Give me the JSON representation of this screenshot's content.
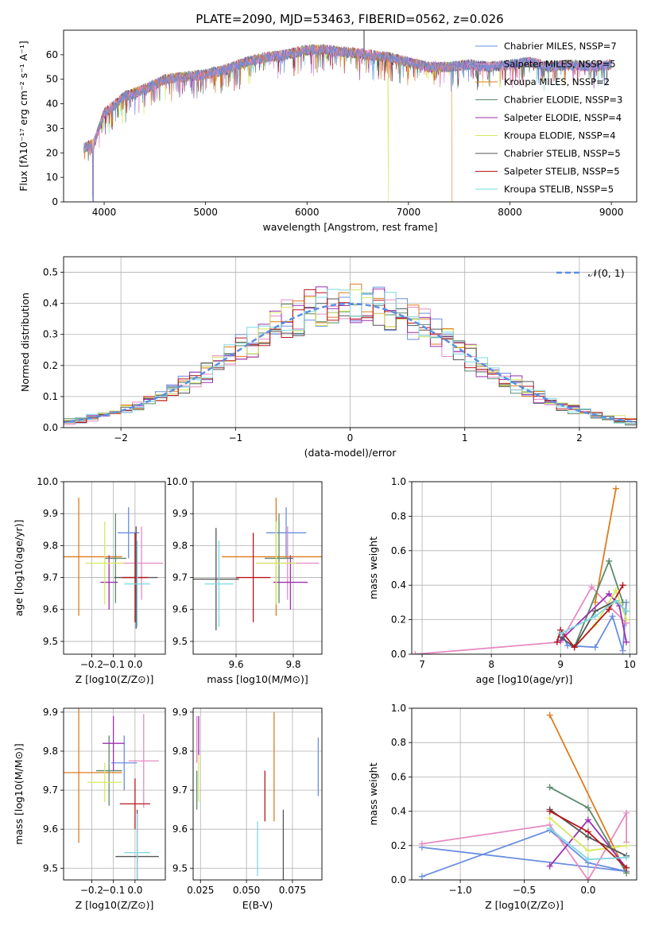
{
  "figure_title": "PLATE=2090, MJD=53463, FIBERID=0562, z=0.026",
  "colors": [
    "#6a8ee0",
    "#e78ac3",
    "#e07b1e",
    "#5b8a6b",
    "#9b30b0",
    "#d8e860",
    "#555555",
    "#b5171c",
    "#7dd8e0"
  ],
  "chart_data": [
    {
      "type": "line",
      "title": "PLATE=2090, MJD=53463, FIBERID=0562, z=0.026",
      "xlabel": "wavelength [Angstrom, rest frame]",
      "ylabel": "Flux [fλ10⁻¹⁷ erg cm⁻² s⁻¹ A⁻¹]",
      "xlim": [
        3600,
        9250
      ],
      "ylim": [
        0,
        70
      ],
      "xticks": [
        4000,
        5000,
        6000,
        7000,
        8000,
        9000
      ],
      "yticks": [
        0,
        10,
        20,
        30,
        40,
        50,
        60
      ],
      "grid": false,
      "legend": "top-right",
      "legend_entries": [
        "Chabrier MILES, NSSP=7",
        "Salpeter MILES, NSSP=5",
        "Kroupa MILES, NSSP=2",
        "Chabrier ELODIE, NSSP=3",
        "Salpeter ELODIE, NSSP=4",
        "Kroupa ELODIE, NSSP=4",
        "Chabrier STELIB, NSSP=5",
        "Salpeter STELIB, NSSP=5",
        "Kroupa STELIB, NSSP=5"
      ],
      "continuum": {
        "x": [
          3800,
          3900,
          4000,
          4200,
          4400,
          4600,
          4800,
          5000,
          5200,
          5400,
          5600,
          5800,
          6000,
          6200,
          6400,
          6600,
          6800,
          7000,
          7200,
          7400,
          7600,
          7800,
          8000,
          8200,
          8400,
          8600,
          8800,
          9000
        ],
        "y": [
          22,
          24,
          36,
          43,
          46,
          50,
          51,
          52,
          54,
          57,
          59,
          60,
          62,
          62,
          61,
          60,
          59,
          57,
          55,
          55,
          56,
          55,
          56,
          57,
          55,
          56,
          55,
          56
        ]
      },
      "series_end_x": [
        9000,
        9000,
        7430,
        9000,
        9000,
        9000,
        9000,
        9000,
        9000
      ],
      "drops": [
        {
          "x": 3890,
          "y_min": 0
        },
        {
          "x": 6800,
          "y_min": 0
        },
        {
          "x": 7430,
          "y_min": 0
        }
      ],
      "spike": {
        "x": 6563,
        "y": 70
      }
    },
    {
      "type": "line",
      "xlabel": "(data-model)/error",
      "ylabel": "Normed distribution",
      "xlim": [
        -2.5,
        2.5
      ],
      "ylim": [
        0,
        0.55
      ],
      "xticks": [
        -2,
        -1,
        0,
        1,
        2
      ],
      "yticks": [
        0.0,
        0.1,
        0.2,
        0.3,
        0.4,
        0.5
      ],
      "grid": true,
      "legend": "top-right",
      "reference_label": "𝒩(0, 1)"
    },
    {
      "type": "scatter",
      "xlabel": "Z [log10(Z/Z⊙)]",
      "ylabel": "age  [log10(age/yr)]",
      "xlim": [
        -0.33,
        0.14
      ],
      "ylim": [
        9.46,
        10.0
      ],
      "xticks": [
        -0.2,
        -0.1,
        0.0
      ],
      "yticks": [
        9.5,
        9.6,
        9.7,
        9.8,
        9.9,
        10.0
      ],
      "grid": true,
      "points": [
        {
          "x": -0.03,
          "y": 9.84,
          "xerr": 0.05,
          "yerr": 0.08
        },
        {
          "x": 0.03,
          "y": 9.745,
          "xerr": 0.1,
          "yerr": 0.115
        },
        {
          "x": -0.26,
          "y": 9.765,
          "xerr": 0.2,
          "yerr": 0.185
        },
        {
          "x": -0.09,
          "y": 9.76,
          "xerr": 0.05,
          "yerr": 0.14
        },
        {
          "x": -0.12,
          "y": 9.685,
          "xerr": 0.04,
          "yerr": 0.085
        },
        {
          "x": -0.14,
          "y": 9.745,
          "xerr": 0.09,
          "yerr": 0.13
        },
        {
          "x": 0.005,
          "y": 9.7,
          "xerr": 0.1,
          "yerr": 0.16
        },
        {
          "x": 0.0,
          "y": 9.7,
          "xerr": 0.06,
          "yerr": 0.14
        },
        {
          "x": 0.01,
          "y": 9.68,
          "xerr": 0.06,
          "yerr": 0.135
        }
      ]
    },
    {
      "type": "scatter",
      "xlabel": "mass [log10(M/M⊙)]",
      "ylabel": "",
      "xlim": [
        9.45,
        9.9
      ],
      "ylim": [
        9.46,
        10.0
      ],
      "xticks": [
        9.6,
        9.8
      ],
      "yticks": [
        9.5,
        9.6,
        9.7,
        9.8,
        9.9,
        10.0
      ],
      "grid": true,
      "points": [
        {
          "x": 9.775,
          "y": 9.84,
          "xerr": 0.07,
          "yerr": 0.08
        },
        {
          "x": 9.78,
          "y": 9.745,
          "xerr": 0.11,
          "yerr": 0.115
        },
        {
          "x": 9.74,
          "y": 9.765,
          "xerr": 0.19,
          "yerr": 0.185
        },
        {
          "x": 9.75,
          "y": 9.76,
          "xerr": 0.05,
          "yerr": 0.14
        },
        {
          "x": 9.79,
          "y": 9.685,
          "xerr": 0.06,
          "yerr": 0.085
        },
        {
          "x": 9.74,
          "y": 9.745,
          "xerr": 0.07,
          "yerr": 0.13
        },
        {
          "x": 9.53,
          "y": 9.695,
          "xerr": 0.08,
          "yerr": 0.16
        },
        {
          "x": 9.66,
          "y": 9.7,
          "xerr": 0.06,
          "yerr": 0.14
        },
        {
          "x": 9.54,
          "y": 9.68,
          "xerr": 0.05,
          "yerr": 0.135
        }
      ]
    },
    {
      "type": "line",
      "xlabel": "age  [log10(age/yr)]",
      "ylabel": "mass weight",
      "xlim": [
        6.85,
        10.1
      ],
      "ylim": [
        0,
        1.0
      ],
      "xticks": [
        7,
        8,
        9,
        10
      ],
      "yticks": [
        0.0,
        0.2,
        0.4,
        0.6,
        0.8,
        1.0
      ],
      "grid": true
    },
    {
      "type": "scatter",
      "xlabel": "Z [log10(Z/Z⊙)]",
      "ylabel": "mass [log10(M/M⊙)]",
      "xlim": [
        -0.33,
        0.14
      ],
      "ylim": [
        9.47,
        9.91
      ],
      "xticks": [
        -0.2,
        -0.1,
        0.0
      ],
      "yticks": [
        9.5,
        9.6,
        9.7,
        9.8,
        9.9
      ],
      "grid": true,
      "points": [
        {
          "x": -0.05,
          "y": 9.77,
          "xerr": 0.06,
          "yerr": 0.07
        },
        {
          "x": 0.04,
          "y": 9.775,
          "xerr": 0.07,
          "yerr": 0.12
        },
        {
          "x": -0.26,
          "y": 9.745,
          "xerr": 0.2,
          "yerr": 0.18
        },
        {
          "x": -0.12,
          "y": 9.75,
          "xerr": 0.06,
          "yerr": 0.09
        },
        {
          "x": -0.1,
          "y": 9.82,
          "xerr": 0.05,
          "yerr": 0.07
        },
        {
          "x": -0.14,
          "y": 9.72,
          "xerr": 0.08,
          "yerr": 0.05
        },
        {
          "x": 0.01,
          "y": 9.53,
          "xerr": 0.1,
          "yerr": 0.12
        },
        {
          "x": 0.0,
          "y": 9.665,
          "xerr": 0.07,
          "yerr": 0.065
        },
        {
          "x": 0.01,
          "y": 9.54,
          "xerr": 0.06,
          "yerr": 0.1
        }
      ]
    },
    {
      "type": "scatter",
      "xlabel": "E(B-V)",
      "ylabel": "",
      "xlim": [
        0.021,
        0.091
      ],
      "ylim": [
        9.47,
        9.91
      ],
      "xticks": [
        0.025,
        0.05,
        0.075
      ],
      "yticks": [
        9.5,
        9.6,
        9.7,
        9.8,
        9.9
      ],
      "grid": true,
      "points": [
        {
          "x": 0.089,
          "y": 9.76,
          "yerr": 0.075
        },
        {
          "x": 0.023,
          "y": 9.83,
          "yerr": 0.06
        },
        {
          "x": 0.065,
          "y": 9.76,
          "yerr": 0.14
        },
        {
          "x": 0.023,
          "y": 9.7,
          "yerr": 0.05
        },
        {
          "x": 0.024,
          "y": 9.84,
          "yerr": 0.05
        },
        {
          "x": 0.024,
          "y": 9.73,
          "yerr": 0.06
        },
        {
          "x": 0.07,
          "y": 9.54,
          "yerr": 0.11
        },
        {
          "x": 0.06,
          "y": 9.685,
          "yerr": 0.065
        },
        {
          "x": 0.056,
          "y": 9.55,
          "yerr": 0.07
        }
      ]
    },
    {
      "type": "line",
      "xlabel": "Z [log10(Z/Z⊙)]",
      "ylabel": "mass weight",
      "xlim": [
        -1.38,
        0.38
      ],
      "ylim": [
        0,
        1.0
      ],
      "xticks": [
        -1.0,
        -0.5,
        0.0
      ],
      "yticks": [
        0.0,
        0.2,
        0.4,
        0.6,
        0.8,
        1.0
      ],
      "grid": true
    }
  ]
}
